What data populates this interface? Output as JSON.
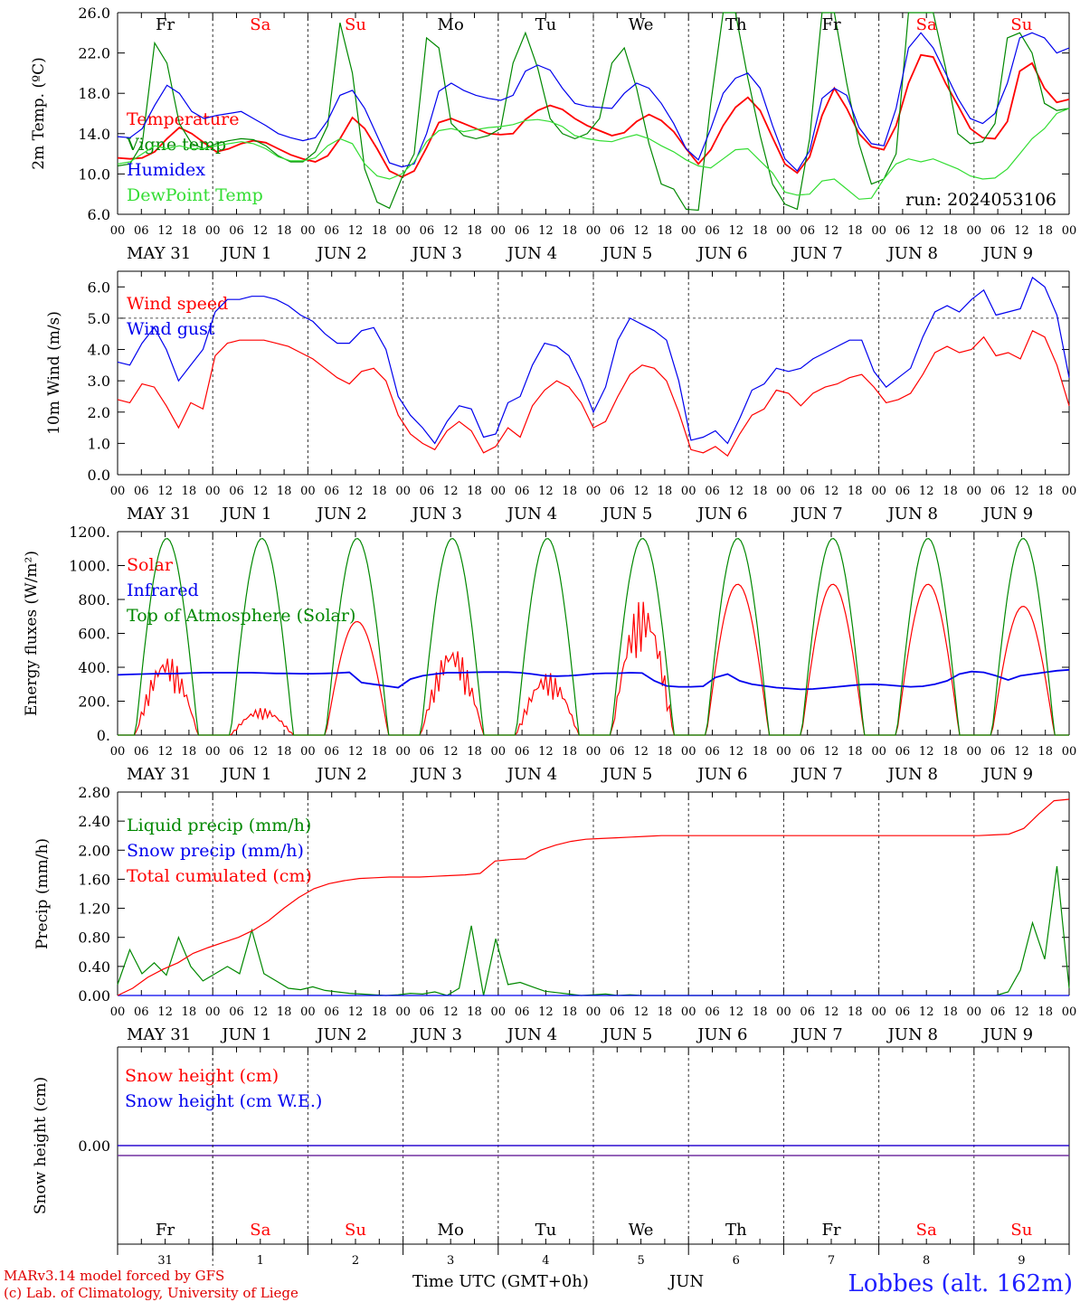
{
  "chart_data": [
    {
      "type": "line",
      "ylabel": "2m Temp. (ºC)",
      "ylim": [
        6,
        26
      ],
      "yticks": [
        "6.0",
        "10.0",
        "14.0",
        "18.0",
        "22.0",
        "26.0"
      ],
      "annotation": "run: 2024053106",
      "series": [
        {
          "name": "Temperature",
          "color": "#ff0000",
          "values": [
            11.6,
            11.5,
            11.6,
            12.2,
            13.5,
            14.6,
            14.0,
            13.1,
            12.2,
            12.5,
            13.0,
            13.3,
            13.1,
            12.5,
            11.9,
            11.5,
            11.2,
            11.8,
            13.5,
            15.6,
            14.5,
            12.5,
            10.3,
            9.7,
            10.3,
            12.6,
            15.1,
            15.5,
            15.0,
            14.5,
            14.0,
            13.9,
            14.0,
            15.4,
            16.3,
            16.8,
            16.4,
            15.5,
            14.8,
            14.3,
            13.8,
            14.1,
            15.2,
            15.9,
            15.3,
            14.2,
            12.5,
            11.0,
            12.4,
            14.8,
            16.6,
            17.6,
            16.3,
            13.6,
            11.0,
            10.1,
            11.7,
            15.8,
            18.5,
            16.5,
            14.0,
            12.7,
            12.4,
            14.8,
            19.0,
            21.8,
            21.6,
            19.0,
            16.8,
            14.5,
            13.6,
            13.5,
            15.2,
            20.2,
            21.0,
            18.5,
            17.1,
            17.4
          ]
        },
        {
          "name": "Vigne temp",
          "color": "#008800",
          "values": [
            10.8,
            11.0,
            13.0,
            23.0,
            21.0,
            15.0,
            13.0,
            12.5,
            13.0,
            13.3,
            13.5,
            13.4,
            12.8,
            11.8,
            11.2,
            11.2,
            12.2,
            14.8,
            25.0,
            20.0,
            10.5,
            7.2,
            6.6,
            9.6,
            12.0,
            23.5,
            22.5,
            15.0,
            13.8,
            13.5,
            13.8,
            14.5,
            21.0,
            24.0,
            20.5,
            15.5,
            14.0,
            13.5,
            14.0,
            15.5,
            21.0,
            22.5,
            18.5,
            13.0,
            9.0,
            8.5,
            6.5,
            6.4,
            17.0,
            26.0,
            26.0,
            19.5,
            13.8,
            9.0,
            7.0,
            6.5,
            13.5,
            26.0,
            26.0,
            19.0,
            13.0,
            9.0,
            9.5,
            12.0,
            26.0,
            26.0,
            26.0,
            20.5,
            14.0,
            13.0,
            13.2,
            15.0,
            23.5,
            24.0,
            22.0,
            17.0,
            16.3,
            16.5
          ]
        },
        {
          "name": "Humidex",
          "color": "#0000ee",
          "values": [
            13.7,
            13.6,
            14.5,
            16.8,
            18.8,
            18.0,
            16.2,
            15.5,
            15.8,
            16.0,
            16.2,
            15.5,
            14.8,
            14.0,
            13.6,
            13.3,
            13.6,
            15.3,
            17.8,
            18.3,
            16.5,
            13.8,
            11.1,
            10.7,
            11.0,
            14.0,
            18.2,
            19.0,
            18.3,
            17.8,
            17.5,
            17.3,
            17.8,
            20.2,
            20.8,
            20.3,
            18.5,
            17.0,
            16.7,
            16.6,
            16.5,
            18.0,
            19.0,
            18.5,
            17.0,
            15.0,
            12.5,
            11.4,
            14.5,
            18.0,
            19.5,
            20.0,
            18.5,
            14.8,
            11.5,
            10.3,
            12.3,
            17.5,
            18.5,
            17.8,
            14.6,
            13.0,
            12.8,
            16.5,
            22.5,
            24.0,
            22.5,
            20.0,
            17.5,
            15.5,
            15.0,
            16.0,
            19.0,
            23.5,
            24.0,
            23.5,
            22.0,
            22.5
          ]
        },
        {
          "name": "DewPoint Temp",
          "color": "#33dd33",
          "values": [
            11.0,
            11.2,
            12.0,
            12.8,
            12.5,
            12.8,
            12.5,
            12.5,
            12.8,
            13.0,
            13.2,
            13.0,
            12.5,
            11.7,
            11.3,
            11.3,
            11.6,
            12.8,
            13.5,
            13.0,
            11.0,
            9.8,
            9.5,
            10.0,
            11.2,
            13.2,
            14.3,
            14.5,
            14.2,
            14.4,
            14.6,
            14.7,
            14.9,
            15.3,
            15.4,
            15.2,
            14.7,
            13.8,
            13.5,
            13.3,
            13.2,
            13.6,
            13.9,
            13.5,
            12.8,
            12.2,
            11.4,
            10.8,
            10.6,
            11.5,
            12.4,
            12.5,
            11.3,
            10.1,
            8.2,
            7.9,
            8.0,
            9.3,
            9.5,
            8.5,
            7.5,
            7.6,
            9.5,
            11.0,
            11.5,
            11.2,
            11.5,
            11.0,
            10.5,
            9.8,
            9.5,
            9.6,
            10.5,
            12.0,
            13.5,
            14.5,
            16.0,
            16.5
          ]
        }
      ]
    },
    {
      "type": "line",
      "ylabel": "10m Wind (m/s)",
      "ylim": [
        0,
        6.5
      ],
      "yticks": [
        "0.0",
        "1.0",
        "2.0",
        "3.0",
        "4.0",
        "5.0",
        "6.0"
      ],
      "reference_line": 5.0,
      "series": [
        {
          "name": "Wind speed",
          "color": "#ff0000",
          "values": [
            2.4,
            2.3,
            2.9,
            2.8,
            2.2,
            1.5,
            2.3,
            2.1,
            3.8,
            4.2,
            4.3,
            4.3,
            4.3,
            4.2,
            4.1,
            3.9,
            3.7,
            3.4,
            3.1,
            2.9,
            3.3,
            3.4,
            3.0,
            1.9,
            1.3,
            1.0,
            0.8,
            1.4,
            1.7,
            1.4,
            0.7,
            0.9,
            1.5,
            1.2,
            2.2,
            2.7,
            3.0,
            2.8,
            2.3,
            1.5,
            1.7,
            2.5,
            3.2,
            3.5,
            3.4,
            3.0,
            2.0,
            0.8,
            0.7,
            0.9,
            0.6,
            1.3,
            1.9,
            2.1,
            2.7,
            2.6,
            2.2,
            2.6,
            2.8,
            2.9,
            3.1,
            3.2,
            2.8,
            2.3,
            2.4,
            2.6,
            3.2,
            3.9,
            4.1,
            3.9,
            4.0,
            4.4,
            3.8,
            3.9,
            3.7,
            4.6,
            4.4,
            3.5,
            2.2
          ]
        },
        {
          "name": "Wind gust",
          "color": "#0000ee",
          "values": [
            3.6,
            3.5,
            4.2,
            4.7,
            4.0,
            3.0,
            3.5,
            4.0,
            5.2,
            5.6,
            5.6,
            5.7,
            5.7,
            5.6,
            5.4,
            5.1,
            4.9,
            4.5,
            4.2,
            4.2,
            4.6,
            4.7,
            4.0,
            2.5,
            1.9,
            1.5,
            1.0,
            1.7,
            2.2,
            2.1,
            1.2,
            1.3,
            2.3,
            2.5,
            3.5,
            4.2,
            4.1,
            3.8,
            3.0,
            2.0,
            2.8,
            4.3,
            5.0,
            4.8,
            4.6,
            4.3,
            3.0,
            1.1,
            1.2,
            1.4,
            1.0,
            1.8,
            2.7,
            2.9,
            3.4,
            3.3,
            3.4,
            3.7,
            3.9,
            4.1,
            4.3,
            4.3,
            3.3,
            2.8,
            3.1,
            3.4,
            4.4,
            5.2,
            5.4,
            5.2,
            5.6,
            5.9,
            5.1,
            5.2,
            5.3,
            6.3,
            6.0,
            5.1,
            3.1
          ]
        }
      ]
    },
    {
      "type": "line",
      "ylabel": "Energy fluxes (W/m²)",
      "ylim": [
        0,
        1200
      ],
      "yticks": [
        "0.",
        "200.",
        "400.",
        "600.",
        "800.",
        "1000.",
        "1200."
      ],
      "series": [
        {
          "name": "Solar",
          "color": "#ff0000",
          "peaks": [
            470,
            160,
            670,
            530,
            370,
            800,
            890,
            890,
            890,
            760
          ]
        },
        {
          "name": "Infrared",
          "color": "#0000ee",
          "values": [
            355,
            358,
            360,
            362,
            362,
            364,
            366,
            368,
            368,
            368,
            368,
            368,
            366,
            364,
            364,
            362,
            362,
            364,
            366,
            370,
            310,
            300,
            290,
            280,
            330,
            350,
            360,
            368,
            368,
            370,
            372,
            372,
            372,
            368,
            360,
            350,
            348,
            350,
            355,
            362,
            365,
            365,
            368,
            366,
            320,
            290,
            285,
            285,
            288,
            340,
            360,
            320,
            300,
            290,
            280,
            275,
            270,
            272,
            278,
            285,
            292,
            298,
            300,
            296,
            290,
            285,
            288,
            300,
            320,
            360,
            375,
            370,
            350,
            325,
            350,
            360,
            370,
            380,
            385
          ]
        },
        {
          "name": "Top of Atmosphere (Solar)",
          "color": "#008800",
          "peak": 1160
        }
      ]
    },
    {
      "type": "line",
      "ylabel": "Precip (mm/h)",
      "ylim": [
        0,
        2.8
      ],
      "yticks": [
        "0.00",
        "0.40",
        "0.80",
        "1.20",
        "1.60",
        "2.00",
        "2.40",
        "2.80"
      ],
      "series": [
        {
          "name": "Liquid precip (mm/h)",
          "color": "#008800",
          "values": [
            0.15,
            0.63,
            0.3,
            0.45,
            0.28,
            0.8,
            0.4,
            0.2,
            0.3,
            0.4,
            0.3,
            0.9,
            0.3,
            0.2,
            0.1,
            0.08,
            0.12,
            0.07,
            0.05,
            0.03,
            0.02,
            0.01,
            0.0,
            0.01,
            0.03,
            0.02,
            0.05,
            0.0,
            0.1,
            0.96,
            0.0,
            0.78,
            0.15,
            0.18,
            0.12,
            0.06,
            0.04,
            0.02,
            0.0,
            0.01,
            0.02,
            0.0,
            0.01,
            0.0,
            0.0,
            0.0,
            0.0,
            0.0,
            0.0,
            0.0,
            0.0,
            0.0,
            0.0,
            0.0,
            0.0,
            0.0,
            0.0,
            0.0,
            0.0,
            0.0,
            0.0,
            0.0,
            0.0,
            0.0,
            0.0,
            0.0,
            0.0,
            0.0,
            0.0,
            0.0,
            0.0,
            0.0,
            0.0,
            0.05,
            0.35,
            1.0,
            0.5,
            1.78,
            0.1
          ]
        },
        {
          "name": "Snow precip (mm/h)",
          "color": "#0000ee",
          "values": [
            0,
            0
          ]
        },
        {
          "name": "Total cumulated (cm)",
          "color": "#ff0000",
          "values": [
            0.0,
            0.1,
            0.25,
            0.36,
            0.45,
            0.58,
            0.66,
            0.73,
            0.8,
            0.9,
            1.03,
            1.2,
            1.35,
            1.47,
            1.54,
            1.58,
            1.61,
            1.62,
            1.63,
            1.63,
            1.63,
            1.64,
            1.65,
            1.66,
            1.68,
            1.85,
            1.87,
            1.88,
            2.0,
            2.07,
            2.12,
            2.15,
            2.16,
            2.17,
            2.18,
            2.19,
            2.2,
            2.2,
            2.2,
            2.2,
            2.2,
            2.2,
            2.2,
            2.2,
            2.2,
            2.2,
            2.2,
            2.2,
            2.2,
            2.2,
            2.2,
            2.2,
            2.2,
            2.2,
            2.2,
            2.2,
            2.2,
            2.2,
            2.21,
            2.22,
            2.3,
            2.5,
            2.68,
            2.7
          ]
        }
      ]
    },
    {
      "type": "line",
      "ylabel": "Snow height (cm)",
      "yticks": [
        "0.00"
      ],
      "series": [
        {
          "name": "Snow height (cm)",
          "color": "#ff0000",
          "values": [
            0,
            0
          ]
        },
        {
          "name": "Snow height (cm W.E.)",
          "color": "#0000ee",
          "values": [
            0,
            0
          ]
        }
      ]
    }
  ],
  "axis": {
    "hour_labels": [
      "00",
      "06",
      "12",
      "18"
    ],
    "final_hour_label": "00",
    "date_labels": [
      "MAY 31",
      "JUN  1",
      "JUN  2",
      "JUN  3",
      "JUN  4",
      "JUN  5",
      "JUN  6",
      "JUN  7",
      "JUN  8",
      "JUN  9"
    ],
    "day_names": [
      "Fr",
      "Sa",
      "Su",
      "Mo",
      "Tu",
      "We",
      "Th",
      "Fr",
      "Sa",
      "Su"
    ],
    "day_name_colors": [
      "#000000",
      "#ff0000",
      "#ff0000",
      "#000000",
      "#000000",
      "#000000",
      "#000000",
      "#000000",
      "#ff0000",
      "#ff0000"
    ],
    "day_numbers": [
      "31",
      "1",
      "2",
      "3",
      "4",
      "5",
      "6",
      "7",
      "8",
      "9"
    ],
    "xlabel": "Time UTC (GMT+0h)",
    "month_label": "JUN"
  },
  "footer": {
    "model_line": "MARv3.14 model forced by GFS",
    "credit_line": "(c) Lab. of Climatology, University of Liege",
    "station": "Lobbes (alt. 162m)"
  }
}
